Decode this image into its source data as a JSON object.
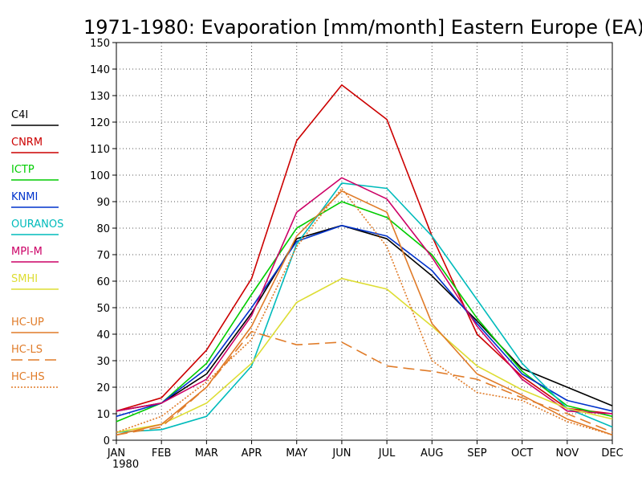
{
  "chart_data": {
    "type": "line",
    "title": "1971-1980: Evaporation [mm/month] Eastern Europe (EA)",
    "xlabel": "",
    "ylabel": "",
    "categories": [
      "JAN",
      "FEB",
      "MAR",
      "APR",
      "MAY",
      "JUN",
      "JUL",
      "AUG",
      "SEP",
      "OCT",
      "NOV",
      "DEC"
    ],
    "first_tick_year": "1980",
    "ylim": [
      0,
      150
    ],
    "yticks": [
      0,
      10,
      20,
      30,
      40,
      50,
      60,
      70,
      80,
      90,
      100,
      110,
      120,
      130,
      140,
      150
    ],
    "grid": true,
    "legend_position": "left",
    "series": [
      {
        "name": "C4I",
        "color": "#000000",
        "dash": "solid",
        "values": [
          11,
          14,
          25,
          48,
          76,
          81,
          76,
          62,
          45,
          27,
          20,
          13
        ]
      },
      {
        "name": "CNRM",
        "color": "#cc0000",
        "dash": "solid",
        "values": [
          11,
          16,
          34,
          61,
          113,
          134,
          121,
          77,
          40,
          24,
          12,
          10
        ]
      },
      {
        "name": "ICTP",
        "color": "#00cc00",
        "dash": "solid",
        "values": [
          7,
          14,
          29,
          55,
          80,
          90,
          84,
          70,
          46,
          26,
          13,
          9
        ]
      },
      {
        "name": "KNMI",
        "color": "#0033cc",
        "dash": "solid",
        "values": [
          9,
          14,
          27,
          50,
          75,
          81,
          77,
          64,
          44,
          25,
          15,
          11
        ]
      },
      {
        "name": "OURANOS",
        "color": "#00bbbb",
        "dash": "solid",
        "values": [
          3,
          4,
          9,
          28,
          74,
          97,
          95,
          77,
          53,
          29,
          12,
          5
        ]
      },
      {
        "name": "MPI-M",
        "color": "#cc0066",
        "dash": "solid",
        "values": [
          11,
          14,
          23,
          47,
          86,
          99,
          91,
          69,
          43,
          23,
          11,
          10
        ]
      },
      {
        "name": "SMHI",
        "color": "#dddd33",
        "dash": "solid",
        "values": [
          3,
          6,
          14,
          29,
          52,
          61,
          57,
          43,
          28,
          19,
          12,
          8
        ]
      },
      {
        "name": "HC-UP",
        "color": "#e07b28",
        "dash": "solid",
        "values": [
          2,
          6,
          20,
          43,
          77,
          94,
          86,
          44,
          25,
          17,
          8,
          2
        ]
      },
      {
        "name": "HC-LS",
        "color": "#e07b28",
        "dash": "longdash",
        "values": [
          2,
          5,
          20,
          41,
          36,
          37,
          28,
          26,
          23,
          16,
          10,
          3
        ]
      },
      {
        "name": "HC-HS",
        "color": "#e07b28",
        "dash": "dotted",
        "values": [
          3,
          9,
          22,
          38,
          73,
          95,
          73,
          30,
          18,
          15,
          7,
          2
        ]
      }
    ]
  }
}
